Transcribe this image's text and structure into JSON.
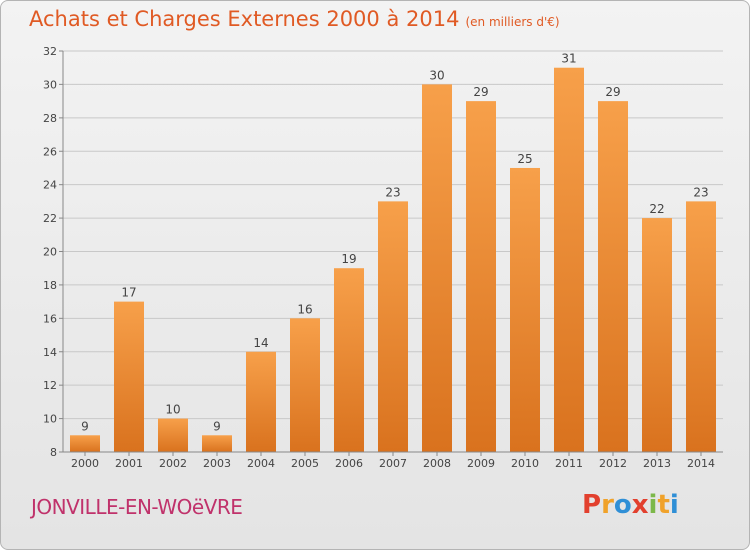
{
  "title": "Achats et Charges Externes 2000 à 2014",
  "unit": "(en milliers d'€)",
  "commune": "JONVILLE-EN-WOëVRE",
  "brand": {
    "text": "Proxiti",
    "letter_colors": [
      "#e2402e",
      "#f0a22a",
      "#2f8fd6",
      "#e2402e",
      "#7cb84a",
      "#f0a22a",
      "#2f8fd6"
    ]
  },
  "colors": {
    "bar_light": "#f7a04a",
    "bar_dark": "#d9721e",
    "grid": "#c8c8c8",
    "axis_text": "#444444"
  },
  "chart_data": {
    "type": "bar",
    "categories": [
      "2000",
      "2001",
      "2002",
      "2003",
      "2004",
      "2005",
      "2006",
      "2007",
      "2008",
      "2009",
      "2010",
      "2011",
      "2012",
      "2013",
      "2014"
    ],
    "values": [
      9,
      17,
      10,
      9,
      14,
      16,
      19,
      23,
      30,
      29,
      25,
      31,
      29,
      22,
      23
    ],
    "ylim": [
      8,
      32
    ],
    "yticks": [
      8,
      10,
      12,
      14,
      16,
      18,
      20,
      22,
      24,
      26,
      28,
      30,
      32
    ],
    "grid": true
  }
}
